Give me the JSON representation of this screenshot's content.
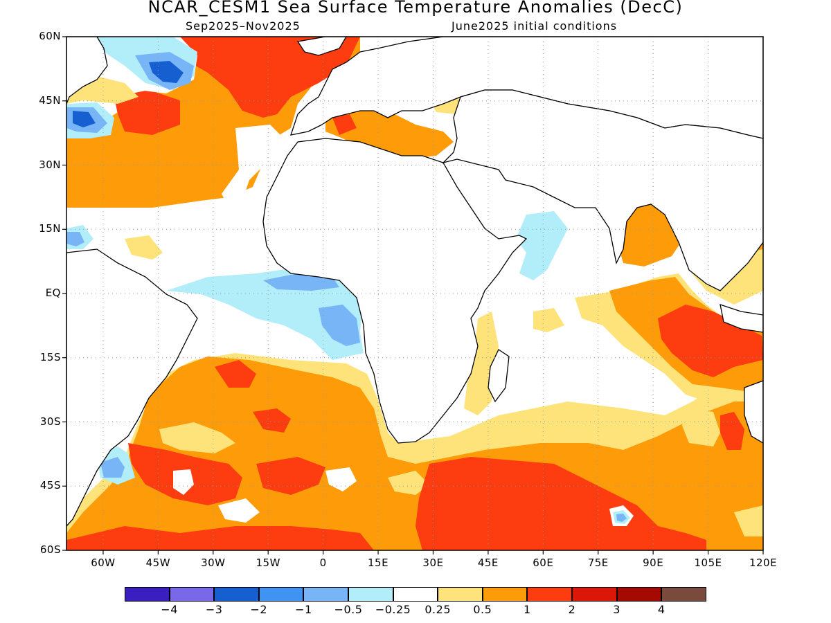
{
  "title": "NCAR_CESM1 Sea Surface Temperature Anomalies (DecC)",
  "season": "Sep2025–Nov2025",
  "init": "June2025 initial conditions",
  "lat_labels": [
    "60N",
    "45N",
    "30N",
    "15N",
    "EQ",
    "15S",
    "30S",
    "45S",
    "60S"
  ],
  "lon_labels": [
    "60W",
    "45W",
    "30W",
    "15W",
    "0",
    "15E",
    "30E",
    "45E",
    "60E",
    "75E",
    "90E",
    "105E",
    "120E"
  ],
  "colorbar": {
    "colors": [
      "#3b1ec0",
      "#7a68ea",
      "#155fd0",
      "#3e93f3",
      "#77b5f7",
      "#b1eef9",
      "#ffffff",
      "#fde37a",
      "#fd9c08",
      "#fd3d10",
      "#db1708",
      "#a50a00",
      "#7a4a3c"
    ],
    "labels": [
      "−4",
      "−3",
      "−2",
      "−1",
      "−0.5",
      "−0.25",
      "0.25",
      "0.5",
      "1",
      "2",
      "3",
      "4"
    ]
  },
  "map": {
    "lon_range": [
      -70,
      120
    ],
    "lat_range": [
      -60,
      60
    ],
    "ocean_color": "#ffffff",
    "land_outline_color": "#000000",
    "grid": "dotted"
  }
}
